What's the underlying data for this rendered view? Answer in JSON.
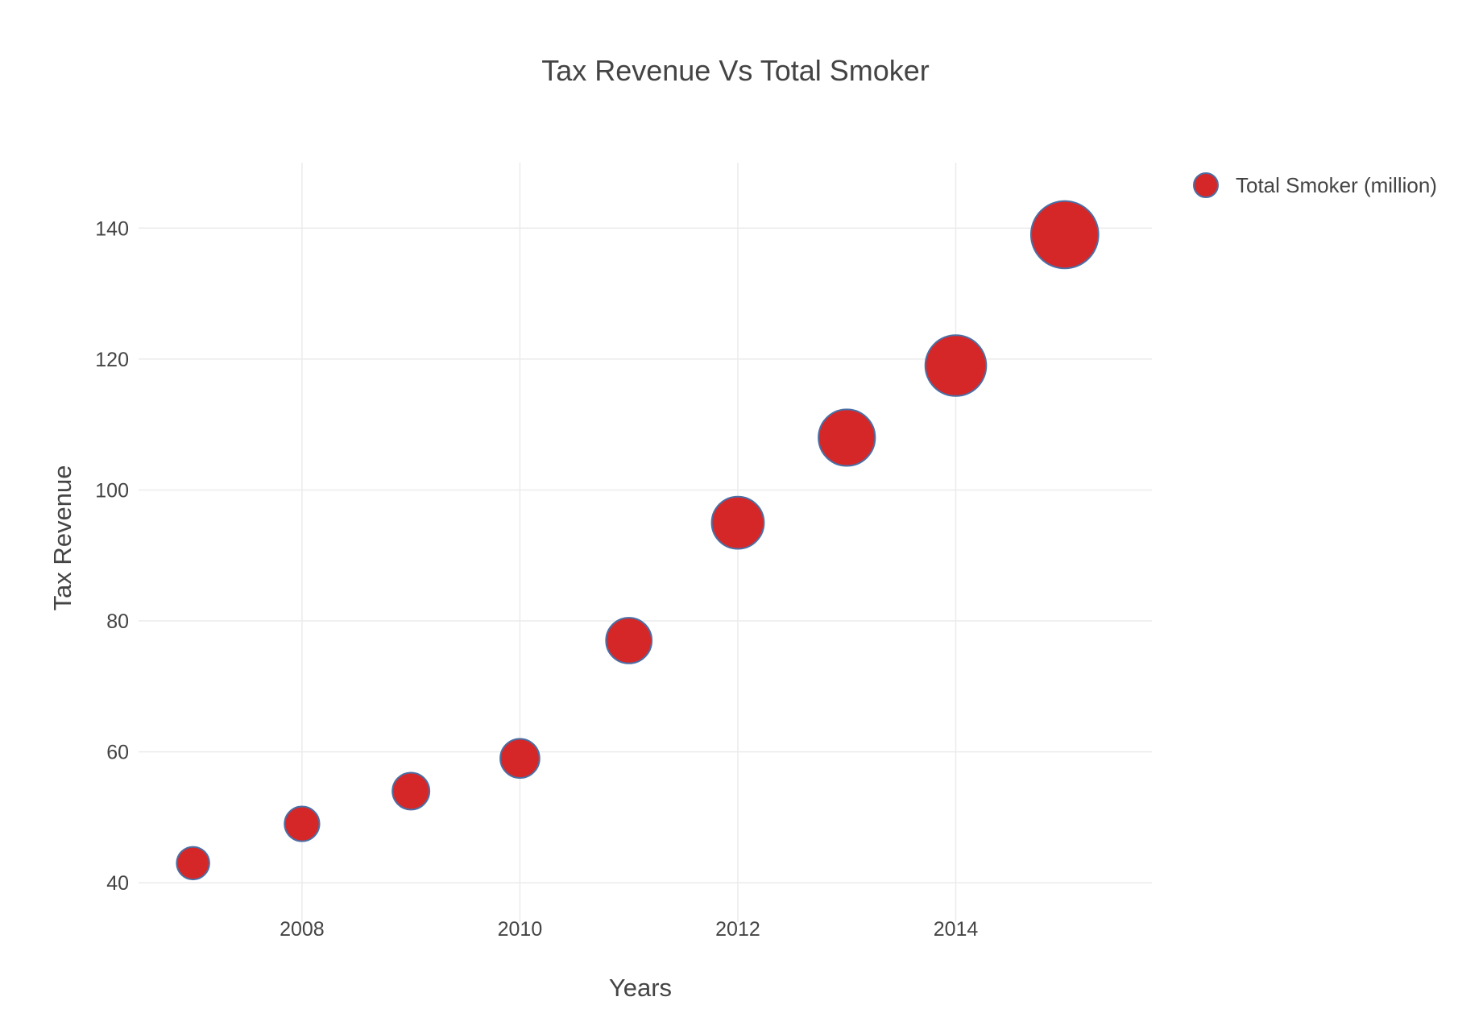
{
  "chart_data": {
    "type": "scatter",
    "title": "Tax Revenue Vs Total Smoker",
    "xlabel": "Years",
    "ylabel": "Tax Revenue",
    "xlim": [
      2006.5,
      2015.8
    ],
    "ylim": [
      34,
      150
    ],
    "x_ticks": [
      2008,
      2010,
      2012,
      2014
    ],
    "y_ticks": [
      40,
      60,
      80,
      100,
      120,
      140
    ],
    "grid": true,
    "legend_position": "top-right",
    "series": [
      {
        "name": "Total Smoker (million)",
        "color": "#d62728",
        "outline_color": "#4a6fa5",
        "x": [
          2007,
          2008,
          2009,
          2010,
          2011,
          2012,
          2013,
          2014,
          2015
        ],
        "y": [
          43,
          49,
          54,
          59,
          77,
          95,
          108,
          119,
          139
        ],
        "size": [
          15,
          16,
          17,
          18,
          21,
          24,
          26,
          28,
          31
        ]
      }
    ]
  }
}
